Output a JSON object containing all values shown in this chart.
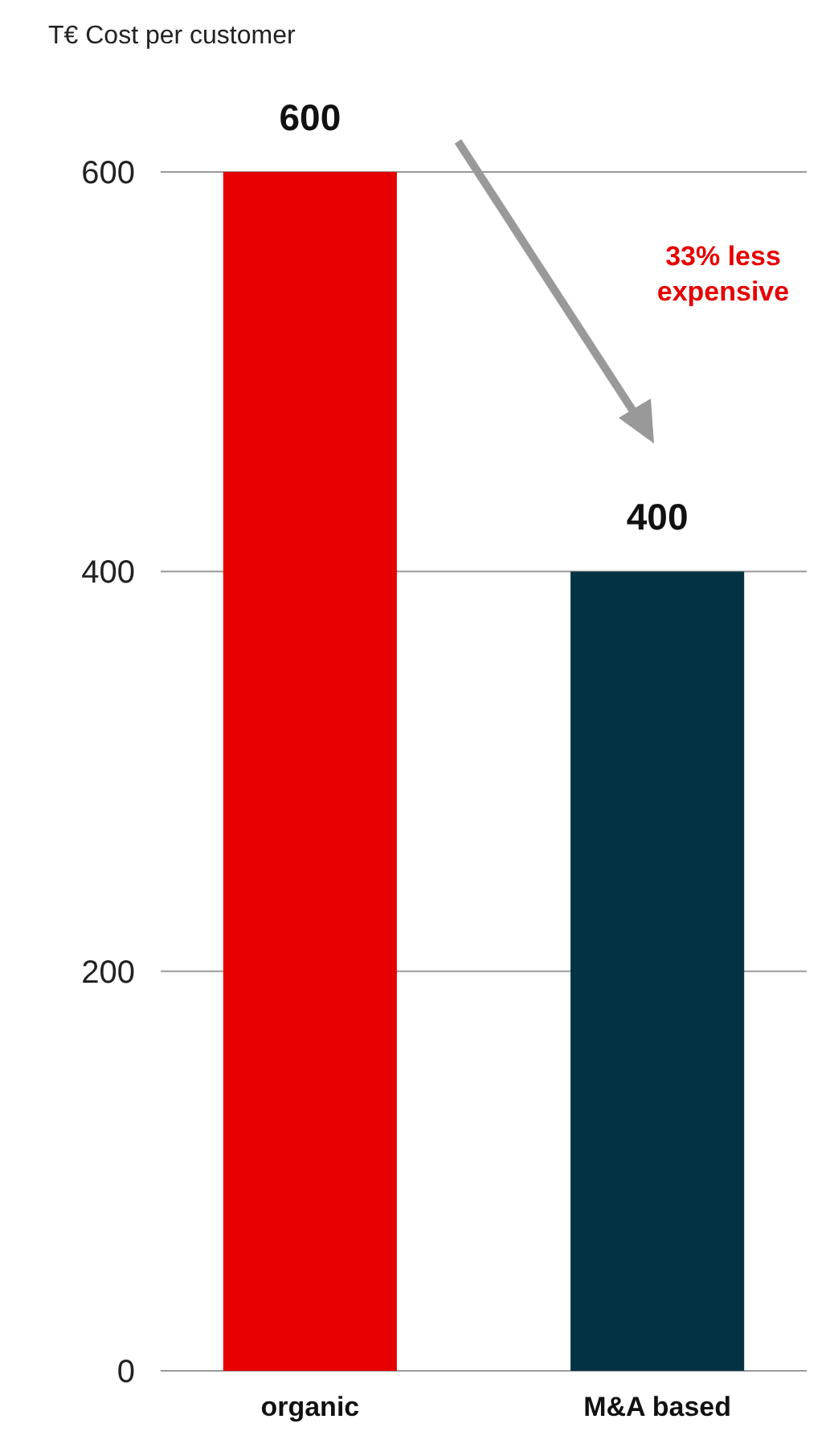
{
  "chart_data": {
    "type": "bar",
    "ylabel": "T€ Cost per customer",
    "categories": [
      "organic",
      "M&A based"
    ],
    "values": [
      600,
      400
    ],
    "colors": [
      "#e60000",
      "#033343"
    ],
    "ylim": [
      0,
      600
    ],
    "yticks": [
      0,
      200,
      400,
      600
    ],
    "grid": "y",
    "data_labels": true,
    "annotations": [
      "33% less expensive"
    ]
  }
}
